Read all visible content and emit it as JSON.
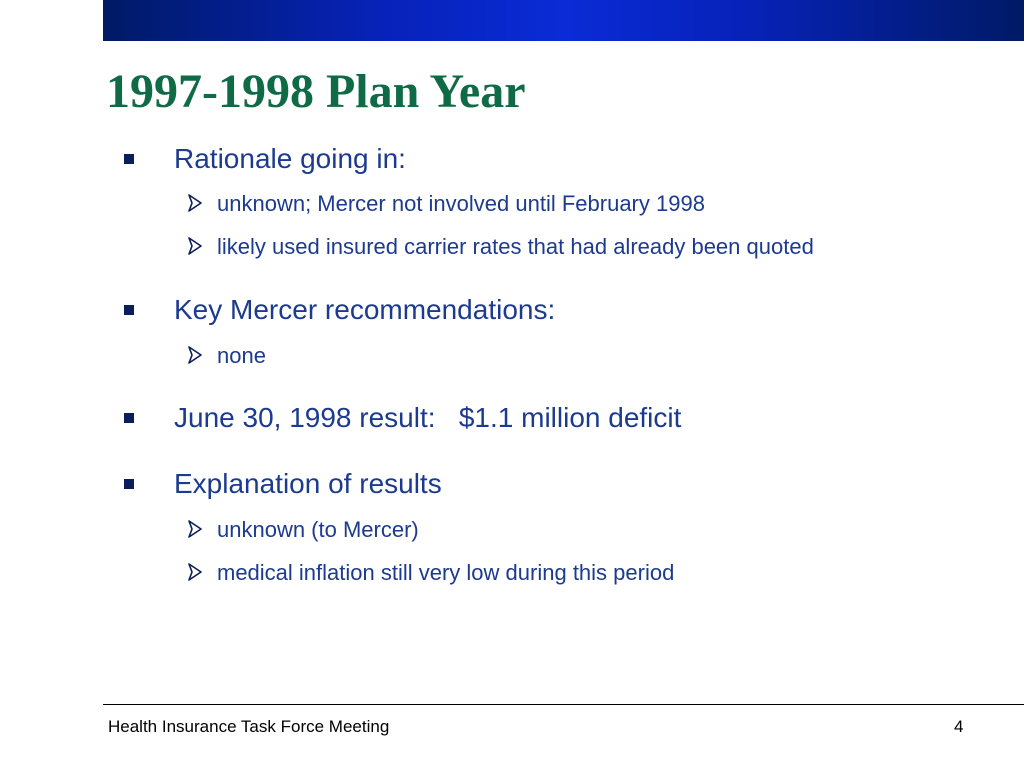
{
  "slide": {
    "title": "1997-1998 Plan Year",
    "bullets": [
      {
        "text": "Rationale going in:",
        "sub": [
          "unknown; Mercer not involved until February 1998",
          "likely used insured carrier rates that had already been quoted"
        ]
      },
      {
        "text": "Key Mercer recommendations:",
        "sub": [
          "none"
        ]
      },
      {
        "text": "June 30, 1998 result:   $1.1 million deficit",
        "sub": []
      },
      {
        "text": "Explanation of results",
        "sub": [
          "unknown (to Mercer)",
          "medical inflation still very low during this period"
        ]
      }
    ]
  },
  "footer": {
    "text": "Health Insurance Task Force Meeting",
    "page_number": "4"
  },
  "colors": {
    "title": "#0e6b45",
    "body_text": "#1c3b8f",
    "top_bar": "#0a2bd6"
  }
}
